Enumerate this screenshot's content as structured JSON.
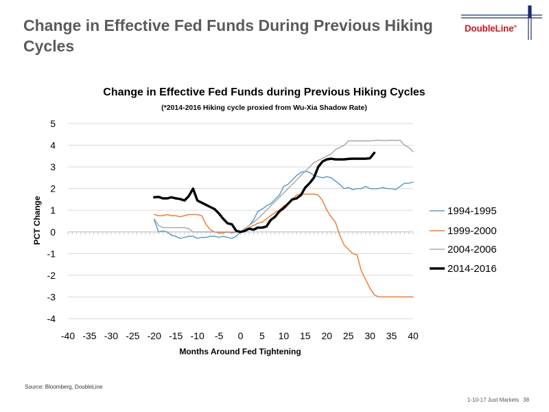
{
  "slide": {
    "title": "Change in Effective Fed Funds During Previous Hiking Cycles",
    "logo": "DoubleLine",
    "source": "Source:  Bloomberg, DoubleLine",
    "footer": "1-10-17 Just Markets",
    "page_number": "38"
  },
  "colors": {
    "title": "#5a5a5a",
    "logo_red": "#c8191f",
    "logo_navy": "#1a2b6d"
  },
  "chart_data": {
    "type": "line",
    "title": "Change in Effective Fed Funds during Previous Hiking Cycles",
    "subtitle": "(*2014-2016 Hiking cycle proxied from Wu-Xia Shadow Rate)",
    "xlabel": "Months Around Fed Tightening",
    "ylabel": "PCT Change",
    "xlim": [
      -40,
      40
    ],
    "ylim": [
      -4,
      5
    ],
    "x_ticks": [
      "-40",
      "-35",
      "-30",
      "-25",
      "-20",
      "-15",
      "-10",
      "-5",
      "0",
      "5",
      "10",
      "15",
      "20",
      "25",
      "30",
      "35",
      "40"
    ],
    "y_ticks": [
      "5",
      "4",
      "3",
      "2",
      "1",
      "0",
      "-1",
      "-2",
      "-3",
      "-4"
    ],
    "grid": true,
    "legend_position": "right",
    "series": [
      {
        "name": "1994-1995",
        "color": "#5b9bc9",
        "width": 1.5,
        "points": [
          [
            -20,
            0.55
          ],
          [
            -19,
            0.0
          ],
          [
            -18,
            0.05
          ],
          [
            -17,
            0.0
          ],
          [
            -16,
            -0.15
          ],
          [
            -15,
            -0.2
          ],
          [
            -14,
            -0.3
          ],
          [
            -13,
            -0.25
          ],
          [
            -12,
            -0.2
          ],
          [
            -11,
            -0.2
          ],
          [
            -10,
            -0.3
          ],
          [
            -9,
            -0.25
          ],
          [
            -8,
            -0.25
          ],
          [
            -7,
            -0.2
          ],
          [
            -6,
            -0.2
          ],
          [
            -5,
            -0.25
          ],
          [
            -4,
            -0.2
          ],
          [
            -3,
            -0.25
          ],
          [
            -2,
            -0.3
          ],
          [
            -1,
            -0.2
          ],
          [
            0,
            0.0
          ],
          [
            1,
            0.15
          ],
          [
            2,
            0.3
          ],
          [
            3,
            0.55
          ],
          [
            4,
            0.95
          ],
          [
            5,
            1.05
          ],
          [
            6,
            1.2
          ],
          [
            7,
            1.3
          ],
          [
            8,
            1.5
          ],
          [
            9,
            1.7
          ],
          [
            10,
            2.1
          ],
          [
            11,
            2.2
          ],
          [
            12,
            2.4
          ],
          [
            13,
            2.6
          ],
          [
            14,
            2.75
          ],
          [
            15,
            2.8
          ],
          [
            16,
            2.75
          ],
          [
            17,
            2.6
          ],
          [
            18,
            2.55
          ],
          [
            19,
            2.5
          ],
          [
            20,
            2.55
          ],
          [
            21,
            2.5
          ],
          [
            22,
            2.35
          ],
          [
            23,
            2.2
          ],
          [
            24,
            2.0
          ],
          [
            25,
            2.05
          ],
          [
            26,
            1.95
          ],
          [
            27,
            2.0
          ],
          [
            28,
            2.0
          ],
          [
            29,
            2.1
          ],
          [
            30,
            2.0
          ],
          [
            31,
            2.0
          ],
          [
            32,
            2.0
          ],
          [
            33,
            2.05
          ],
          [
            34,
            2.0
          ],
          [
            35,
            2.0
          ],
          [
            36,
            1.95
          ],
          [
            37,
            2.1
          ],
          [
            38,
            2.25
          ],
          [
            39,
            2.25
          ],
          [
            40,
            2.3
          ]
        ]
      },
      {
        "name": "1999-2000",
        "color": "#ed7d31",
        "width": 1.5,
        "points": [
          [
            -20,
            0.8
          ],
          [
            -19,
            0.75
          ],
          [
            -18,
            0.75
          ],
          [
            -17,
            0.8
          ],
          [
            -16,
            0.75
          ],
          [
            -15,
            0.75
          ],
          [
            -14,
            0.7
          ],
          [
            -13,
            0.75
          ],
          [
            -12,
            0.8
          ],
          [
            -11,
            0.8
          ],
          [
            -10,
            0.8
          ],
          [
            -9,
            0.75
          ],
          [
            -8,
            0.35
          ],
          [
            -7,
            0.1
          ],
          [
            -6,
            0.0
          ],
          [
            -5,
            -0.05
          ],
          [
            -4,
            -0.05
          ],
          [
            -3,
            0.0
          ],
          [
            -2,
            -0.05
          ],
          [
            -1,
            0.0
          ],
          [
            0,
            0.0
          ],
          [
            1,
            0.1
          ],
          [
            2,
            0.2
          ],
          [
            3,
            0.3
          ],
          [
            4,
            0.4
          ],
          [
            5,
            0.45
          ],
          [
            6,
            0.6
          ],
          [
            7,
            0.75
          ],
          [
            8,
            0.9
          ],
          [
            9,
            1.0
          ],
          [
            10,
            1.2
          ],
          [
            11,
            1.3
          ],
          [
            12,
            1.5
          ],
          [
            13,
            1.7
          ],
          [
            14,
            1.75
          ],
          [
            15,
            1.75
          ],
          [
            16,
            1.75
          ],
          [
            17,
            1.75
          ],
          [
            18,
            1.7
          ],
          [
            19,
            1.45
          ],
          [
            20,
            1.0
          ],
          [
            21,
            0.7
          ],
          [
            22,
            0.45
          ],
          [
            23,
            -0.15
          ],
          [
            24,
            -0.6
          ],
          [
            25,
            -0.8
          ],
          [
            26,
            -1.0
          ],
          [
            27,
            -1.05
          ],
          [
            28,
            -1.8
          ],
          [
            29,
            -2.2
          ],
          [
            30,
            -2.6
          ],
          [
            31,
            -2.9
          ],
          [
            32,
            -3.0
          ],
          [
            33,
            -3.0
          ],
          [
            34,
            -3.0
          ],
          [
            35,
            -3.0
          ],
          [
            36,
            -3.0
          ],
          [
            37,
            -3.0
          ],
          [
            38,
            -3.0
          ],
          [
            39,
            -3.0
          ],
          [
            40,
            -3.0
          ]
        ]
      },
      {
        "name": "2004-2006",
        "color": "#a9a9a9",
        "width": 1.5,
        "points": [
          [
            -20,
            0.6
          ],
          [
            -19,
            0.3
          ],
          [
            -18,
            0.2
          ],
          [
            -17,
            0.2
          ],
          [
            -16,
            0.2
          ],
          [
            -15,
            0.2
          ],
          [
            -14,
            0.2
          ],
          [
            -13,
            0.2
          ],
          [
            -12,
            0.15
          ],
          [
            -11,
            0.0
          ],
          [
            -10,
            0.0
          ],
          [
            -9,
            0.0
          ],
          [
            -8,
            0.0
          ],
          [
            -7,
            0.0
          ],
          [
            -6,
            0.0
          ],
          [
            -5,
            0.0
          ],
          [
            -4,
            0.0
          ],
          [
            -3,
            0.0
          ],
          [
            -2,
            0.0
          ],
          [
            -1,
            0.0
          ],
          [
            0,
            0.0
          ],
          [
            1,
            0.15
          ],
          [
            2,
            0.3
          ],
          [
            3,
            0.45
          ],
          [
            4,
            0.6
          ],
          [
            5,
            0.8
          ],
          [
            6,
            1.0
          ],
          [
            7,
            1.2
          ],
          [
            8,
            1.4
          ],
          [
            9,
            1.6
          ],
          [
            10,
            1.8
          ],
          [
            11,
            2.0
          ],
          [
            12,
            2.2
          ],
          [
            13,
            2.4
          ],
          [
            14,
            2.6
          ],
          [
            15,
            2.8
          ],
          [
            16,
            3.0
          ],
          [
            17,
            3.2
          ],
          [
            18,
            3.3
          ],
          [
            19,
            3.4
          ],
          [
            20,
            3.5
          ],
          [
            21,
            3.6
          ],
          [
            22,
            3.8
          ],
          [
            23,
            3.9
          ],
          [
            24,
            4.0
          ],
          [
            25,
            4.2
          ],
          [
            26,
            4.2
          ],
          [
            27,
            4.2
          ],
          [
            28,
            4.2
          ],
          [
            29,
            4.2
          ],
          [
            30,
            4.2
          ],
          [
            31,
            4.22
          ],
          [
            32,
            4.23
          ],
          [
            33,
            4.22
          ],
          [
            34,
            4.22
          ],
          [
            35,
            4.23
          ],
          [
            36,
            4.22
          ],
          [
            37,
            4.23
          ],
          [
            38,
            4.0
          ],
          [
            39,
            3.9
          ],
          [
            40,
            3.7
          ]
        ]
      },
      {
        "name": "2014-2016",
        "color": "#000000",
        "width": 3.5,
        "points": [
          [
            -20,
            1.6
          ],
          [
            -19,
            1.62
          ],
          [
            -18,
            1.55
          ],
          [
            -17,
            1.55
          ],
          [
            -16,
            1.6
          ],
          [
            -15,
            1.55
          ],
          [
            -14,
            1.52
          ],
          [
            -13,
            1.45
          ],
          [
            -12,
            1.65
          ],
          [
            -11,
            2.0
          ],
          [
            -10,
            1.45
          ],
          [
            -9,
            1.35
          ],
          [
            -8,
            1.25
          ],
          [
            -7,
            1.15
          ],
          [
            -6,
            1.05
          ],
          [
            -5,
            0.85
          ],
          [
            -4,
            0.6
          ],
          [
            -3,
            0.4
          ],
          [
            -2,
            0.35
          ],
          [
            -1,
            0.05
          ],
          [
            0,
            0.0
          ],
          [
            1,
            0.05
          ],
          [
            2,
            0.15
          ],
          [
            3,
            0.1
          ],
          [
            4,
            0.2
          ],
          [
            5,
            0.2
          ],
          [
            6,
            0.25
          ],
          [
            7,
            0.55
          ],
          [
            8,
            0.7
          ],
          [
            9,
            0.95
          ],
          [
            10,
            1.1
          ],
          [
            11,
            1.3
          ],
          [
            12,
            1.5
          ],
          [
            13,
            1.55
          ],
          [
            14,
            1.7
          ],
          [
            15,
            2.05
          ],
          [
            16,
            2.25
          ],
          [
            17,
            2.5
          ],
          [
            18,
            3.0
          ],
          [
            19,
            3.25
          ],
          [
            20,
            3.35
          ],
          [
            21,
            3.38
          ],
          [
            22,
            3.35
          ],
          [
            23,
            3.35
          ],
          [
            24,
            3.35
          ],
          [
            25,
            3.37
          ],
          [
            26,
            3.38
          ],
          [
            27,
            3.38
          ],
          [
            28,
            3.38
          ],
          [
            29,
            3.38
          ],
          [
            30,
            3.4
          ],
          [
            31,
            3.65
          ]
        ]
      }
    ]
  }
}
